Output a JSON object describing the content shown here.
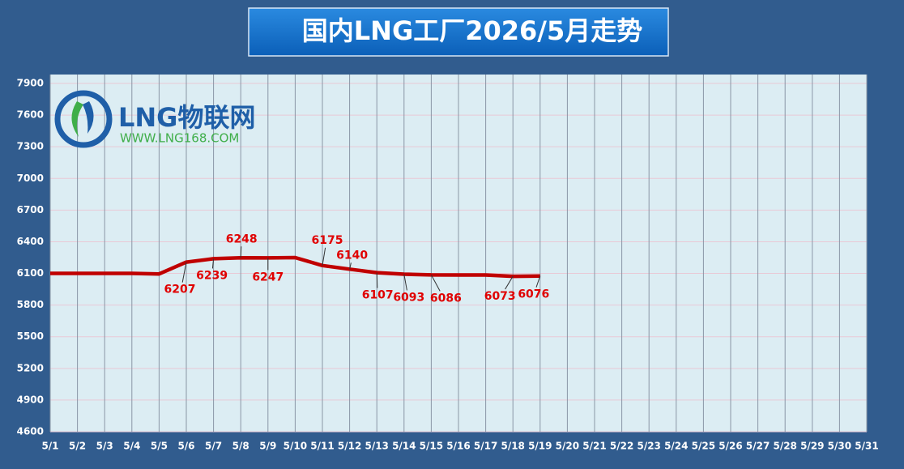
{
  "chart_data": {
    "type": "line",
    "title": "国内LNG工厂2026/5月走势",
    "watermark": [
      "LNG物联网",
      "WWW.LNG168.COM"
    ],
    "categories": [
      "5/1",
      "5/2",
      "5/3",
      "5/4",
      "5/5",
      "5/6",
      "5/7",
      "5/8",
      "5/9",
      "5/10",
      "5/11",
      "5/12",
      "5/13",
      "5/14",
      "5/15",
      "5/16",
      "5/17",
      "5/18",
      "5/19",
      "5/20",
      "5/21",
      "5/22",
      "5/23",
      "5/24",
      "5/25",
      "5/26",
      "5/27",
      "5/28",
      "5/29",
      "5/30",
      "5/31"
    ],
    "values": [
      6100,
      6100,
      6100,
      6100,
      6095,
      6207,
      6239,
      6248,
      6247,
      6250,
      6175,
      6140,
      6107,
      6093,
      6086,
      6085,
      6085,
      6073,
      6076,
      null,
      null,
      null,
      null,
      null,
      null,
      null,
      null,
      null,
      null,
      null,
      null
    ],
    "value_labels": [
      null,
      null,
      null,
      null,
      null,
      "6207",
      "6239",
      "6248",
      "6247",
      null,
      "6175",
      "6140",
      "6107",
      "6093",
      "6086",
      null,
      null,
      "6073",
      "6076",
      null,
      null,
      null,
      null,
      null,
      null,
      null,
      null,
      null,
      null,
      null,
      null
    ],
    "color": "#c00000",
    "ylim": [
      4600,
      7900
    ],
    "yticks": [
      4600,
      4900,
      5200,
      5500,
      5800,
      6100,
      6400,
      6700,
      7000,
      7300,
      7600,
      7900
    ],
    "grid": true
  }
}
